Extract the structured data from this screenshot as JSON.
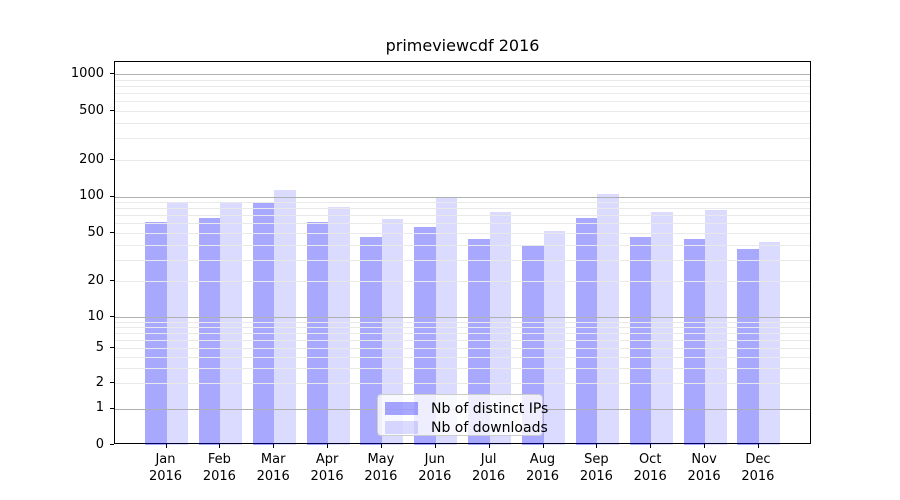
{
  "title": "primeviewcdf 2016",
  "chart_data": {
    "type": "bar",
    "title": "primeviewcdf 2016",
    "categories": [
      "Jan 2016",
      "Feb 2016",
      "Mar 2016",
      "Apr 2016",
      "May 2016",
      "Jun 2016",
      "Jul 2016",
      "Aug 2016",
      "Sep 2016",
      "Oct 2016",
      "Nov 2016",
      "Dec 2016"
    ],
    "series": [
      {
        "name": "Nb of distinct IPs",
        "values": [
          62,
          67,
          88,
          62,
          46,
          56,
          45,
          39,
          66,
          46,
          45,
          37
        ],
        "color": "rgba(0,0,255,0.34)"
      },
      {
        "name": "Nb of downloads",
        "values": [
          90,
          89,
          113,
          82,
          65,
          99,
          74,
          52,
          105,
          74,
          77,
          42
        ],
        "color": "rgba(0,0,255,0.14)"
      }
    ],
    "yscale": "symlog",
    "yticks": [
      0,
      1,
      2,
      5,
      10,
      20,
      50,
      100,
      200,
      500,
      1000
    ],
    "ytick_labels": [
      "0",
      "1",
      "2",
      "5",
      "10",
      "20",
      "50",
      "100",
      "200",
      "500",
      "1000"
    ],
    "ylim": [
      0,
      1250
    ],
    "grid": "major-and-minor",
    "legend_position": "lower center"
  },
  "x_ticks": [
    {
      "month": "Jan",
      "year": "2016"
    },
    {
      "month": "Feb",
      "year": "2016"
    },
    {
      "month": "Mar",
      "year": "2016"
    },
    {
      "month": "Apr",
      "year": "2016"
    },
    {
      "month": "May",
      "year": "2016"
    },
    {
      "month": "Jun",
      "year": "2016"
    },
    {
      "month": "Jul",
      "year": "2016"
    },
    {
      "month": "Aug",
      "year": "2016"
    },
    {
      "month": "Sep",
      "year": "2016"
    },
    {
      "month": "Oct",
      "year": "2016"
    },
    {
      "month": "Nov",
      "year": "2016"
    },
    {
      "month": "Dec",
      "year": "2016"
    }
  ],
  "colors": {
    "grid_major": "#b0b0b0",
    "grid_minor": "#e9e9e9",
    "spine": "#000000",
    "legend_border": "#cccccc"
  }
}
